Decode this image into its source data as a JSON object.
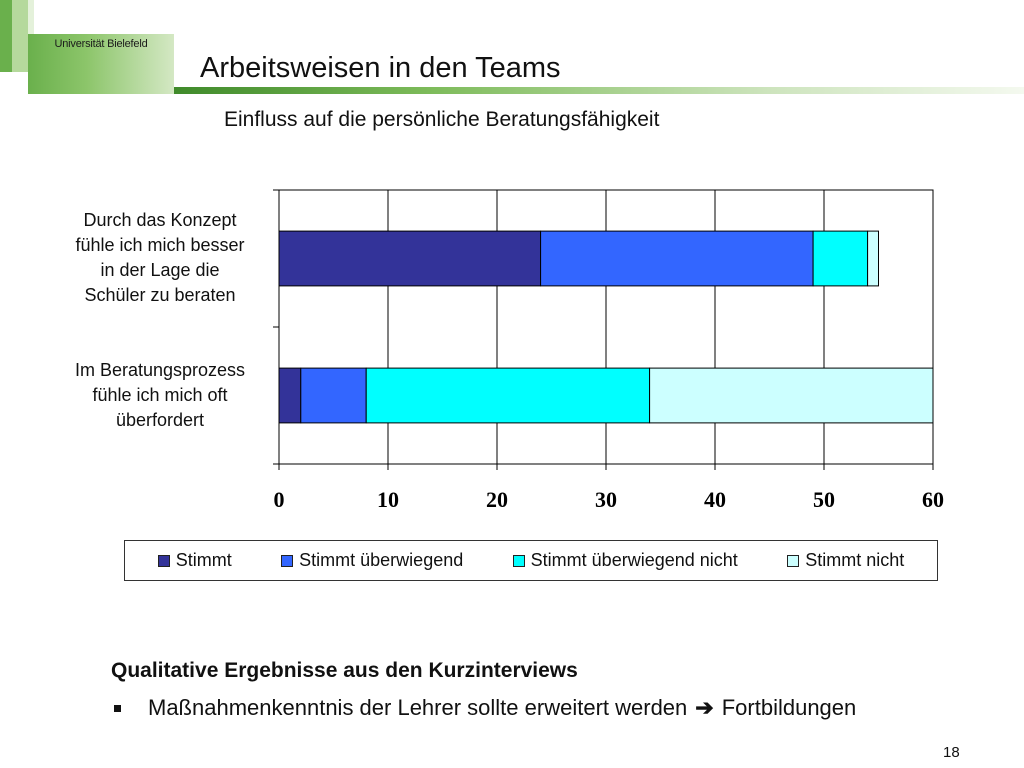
{
  "header": {
    "logo_text": "Universität Bielefeld",
    "title": "Arbeitsweisen in den Teams"
  },
  "chart_data": {
    "type": "bar",
    "orientation": "horizontal",
    "stacked": true,
    "title": "Einfluss auf die persönliche Beratungsfähigkeit",
    "categories": [
      "Durch das Konzept fühle ich mich besser in der Lage die Schüler zu beraten",
      "Im Beratungsprozess fühle ich mich oft überfordert"
    ],
    "category_lines": [
      [
        "Durch das Konzept",
        "fühle ich mich besser",
        "in der Lage die",
        "Schüler zu beraten"
      ],
      [
        "Im Beratungsprozess",
        "fühle ich mich oft",
        "überfordert"
      ]
    ],
    "series": [
      {
        "name": "Stimmt",
        "values": [
          24,
          2
        ],
        "color": "#333399"
      },
      {
        "name": "Stimmt überwiegend",
        "values": [
          25,
          6
        ],
        "color": "#3366ff"
      },
      {
        "name": "Stimmt überwiegend nicht",
        "values": [
          5,
          26
        ],
        "color": "#00ffff"
      },
      {
        "name": "Stimmt nicht",
        "values": [
          1,
          26
        ],
        "color": "#ccffff"
      }
    ],
    "xlim": [
      0,
      60
    ],
    "xticks": [
      0,
      10,
      20,
      30,
      40,
      50,
      60
    ],
    "grid": true,
    "legend_position": "bottom"
  },
  "qualitative": {
    "heading": "Qualitative Ergebnisse aus den Kurzinterviews",
    "bullet_text": "Maßnahmenkenntnis der Lehrer sollte erweitert werden",
    "arrow_glyph": "➔",
    "bullet_target": "Fortbildungen"
  },
  "footer": {
    "page_number": "18"
  }
}
